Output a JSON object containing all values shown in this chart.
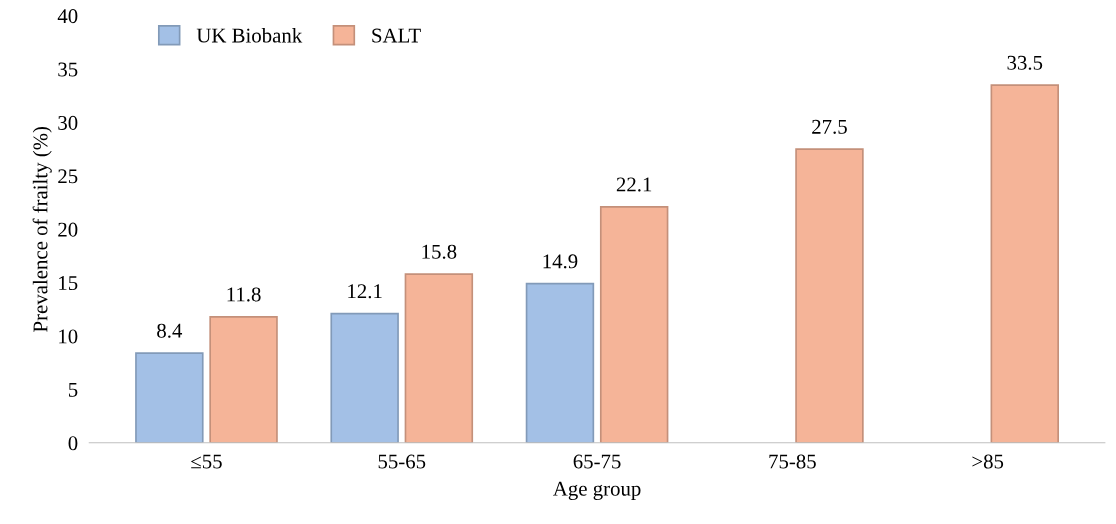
{
  "chart_data": {
    "type": "bar",
    "xlabel": "Age group",
    "ylabel": "Prevalence of frailty (%)",
    "categories": [
      "≤55",
      "55-65",
      "65-75",
      "75-85",
      ">85"
    ],
    "series": [
      {
        "name": "UK Biobank",
        "color": "#a3c0e6",
        "values": [
          8.4,
          12.1,
          14.9,
          null,
          null
        ]
      },
      {
        "name": "SALT",
        "color": "#f5b498",
        "values": [
          11.8,
          15.8,
          22.1,
          27.5,
          33.5
        ]
      }
    ],
    "ylim": [
      0,
      40
    ],
    "yticks": [
      0,
      5,
      10,
      15,
      20,
      25,
      30,
      35,
      40
    ],
    "data_labels": true,
    "legend": "top left",
    "grid": false
  }
}
